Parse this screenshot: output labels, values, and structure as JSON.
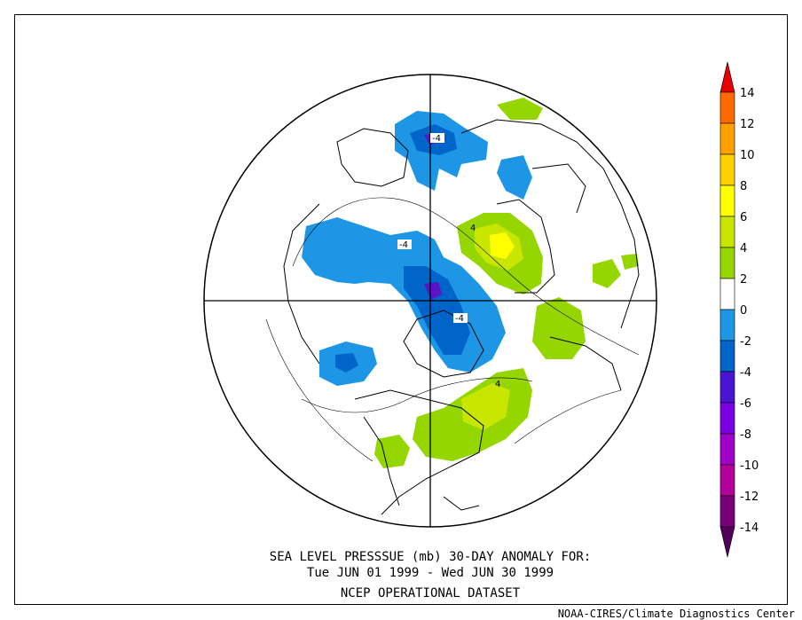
{
  "caption": {
    "line1": "SEA LEVEL PRESSSUE (mb)   30-DAY ANOMALY FOR:",
    "line2": "Tue JUN 01 1999 - Wed JUN 30 1999",
    "line3": "NCEP OPERATIONAL DATASET"
  },
  "credit": "NOAA-CIRES/Climate Diagnostics Center",
  "colorbar": {
    "levels": [
      {
        "label": "14",
        "color": "#ff6a00"
      },
      {
        "label": "12",
        "color": "#ffa000"
      },
      {
        "label": "10",
        "color": "#ffd000"
      },
      {
        "label": "8",
        "color": "#ffff00"
      },
      {
        "label": "6",
        "color": "#c8e600"
      },
      {
        "label": "4",
        "color": "#96d600"
      },
      {
        "label": "2",
        "color": "#ffffff"
      },
      {
        "label": "0",
        "color": "#ffffff"
      },
      {
        "label": "-2",
        "color": "#1e96e6"
      },
      {
        "label": "-4",
        "color": "#0064c8"
      },
      {
        "label": "-6",
        "color": "#4b14d2"
      },
      {
        "label": "-8",
        "color": "#7a00e6"
      },
      {
        "label": "-10",
        "color": "#a000c8"
      },
      {
        "label": "-12",
        "color": "#b4009a"
      },
      {
        "label": "-14",
        "color": "#7a007a"
      }
    ],
    "top_color": "#e60000",
    "bottom_color": "#52005a"
  },
  "contour_labels": [
    "-4",
    "-4",
    "-4",
    "4",
    "4"
  ],
  "colors": {
    "positive_light": "#96d600",
    "positive_mid": "#c8e600",
    "positive_high": "#ffff00",
    "negative_light": "#1e96e6",
    "negative_mid": "#0064c8",
    "negative_deep": "#5a14c8"
  }
}
